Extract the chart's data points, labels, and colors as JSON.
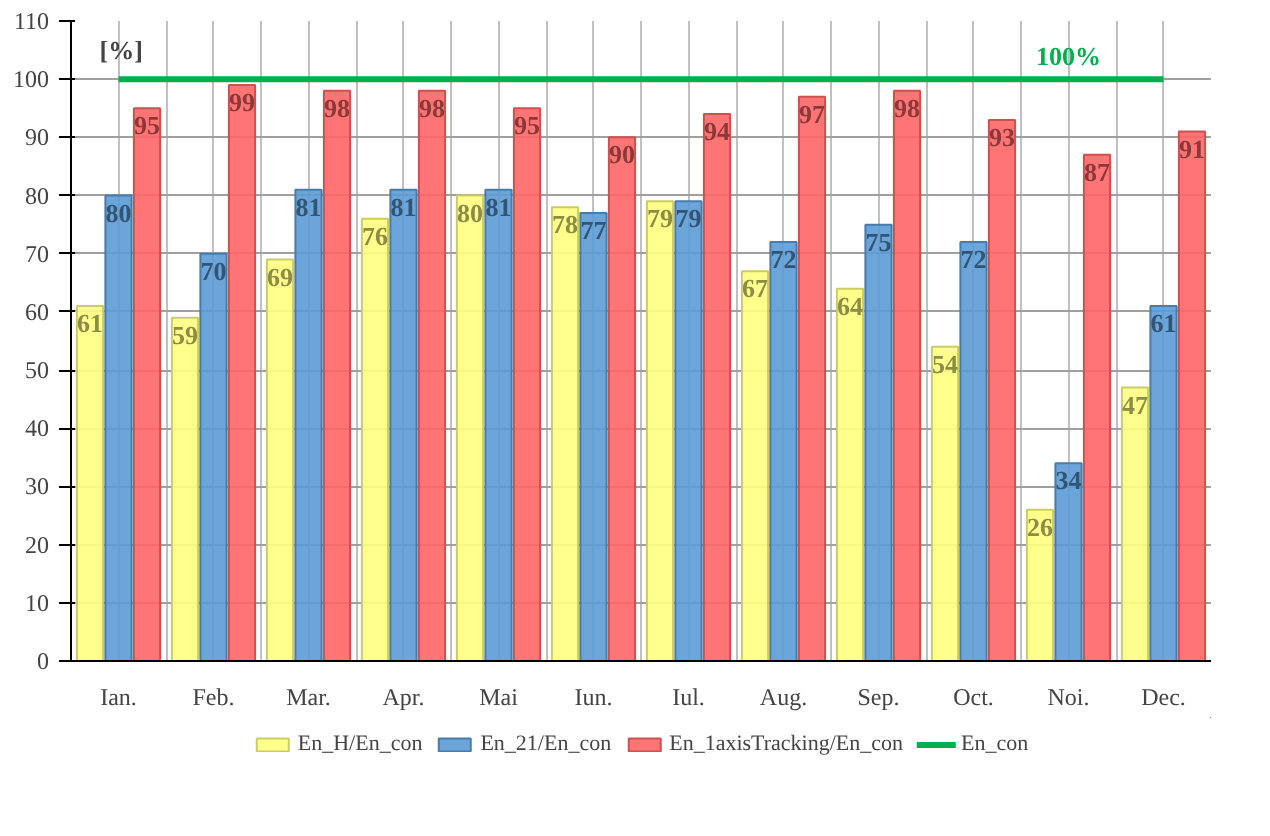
{
  "chart_data": {
    "type": "bar",
    "categories": [
      "Ian.",
      "Feb.",
      "Mar.",
      "Apr.",
      "Mai",
      "Iun.",
      "Iul.",
      "Aug.",
      "Sep.",
      "Oct.",
      "Noi.",
      "Dec."
    ],
    "series": [
      {
        "name": "En_H/En_con",
        "color": "#ffff80",
        "values": [
          61,
          59,
          69,
          76,
          80,
          78,
          79,
          67,
          64,
          54,
          26,
          47
        ]
      },
      {
        "name": "En_21/En_con",
        "color": "#5b9bd5",
        "values": [
          80,
          70,
          81,
          81,
          81,
          77,
          79,
          72,
          75,
          72,
          34,
          61
        ]
      },
      {
        "name": "En_1axisTracking/En_con",
        "color": "#ff6666",
        "values": [
          95,
          99,
          98,
          98,
          95,
          90,
          94,
          97,
          98,
          93,
          87,
          91
        ]
      },
      {
        "name": "En_con",
        "type": "line",
        "color": "#00b050",
        "values": [
          100,
          100,
          100,
          100,
          100,
          100,
          100,
          100,
          100,
          100,
          100,
          100
        ],
        "value_labels": [
          null,
          null,
          null,
          null,
          null,
          null,
          null,
          null,
          null,
          null,
          "100%",
          null
        ]
      }
    ],
    "data_labels": true,
    "annotations": [
      "[%]"
    ],
    "ylim": [
      0,
      110
    ],
    "yticks": [
      0,
      10,
      20,
      30,
      40,
      50,
      60,
      70,
      80,
      90,
      100,
      110
    ],
    "grid": true,
    "legend": "bottom"
  }
}
